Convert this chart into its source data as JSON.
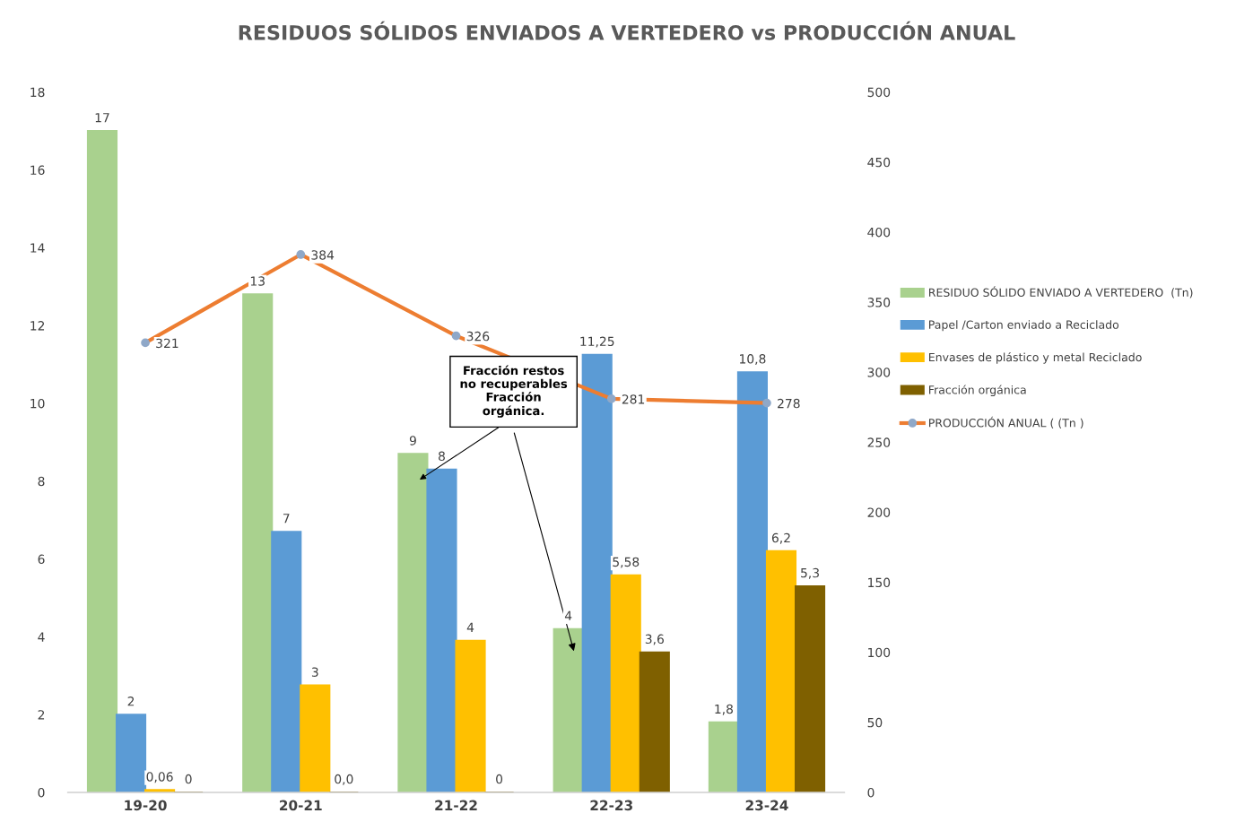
{
  "chart_data": {
    "type": "bar",
    "title": "RESIDUOS SÓLIDOS ENVIADOS A VERTEDERO vs PRODUCCIÓN ANUAL",
    "categories": [
      "19-20",
      "20-21",
      "21-22",
      "22-23",
      "23-24"
    ],
    "series": [
      {
        "name": "RESIDUO SÓLIDO ENVIADO A VERTEDERO  (Tn)",
        "color": "#a9d18e",
        "values": [
          17,
          12.8,
          8.7,
          4.2,
          1.8
        ],
        "value_labels": [
          "17",
          "13",
          "9",
          "4",
          "1,8"
        ]
      },
      {
        "name": "Papel /Carton enviado a Reciclado",
        "color": "#5b9bd5",
        "values": [
          2,
          6.7,
          8.3,
          11.25,
          10.8
        ],
        "value_labels": [
          "2",
          "7",
          "8",
          "11,25",
          "10,8"
        ]
      },
      {
        "name": "Envases de plástico y metal Reciclado",
        "color": "#ffc000",
        "values": [
          0.06,
          2.75,
          3.9,
          5.58,
          6.2
        ],
        "value_labels": [
          "0,06",
          "3",
          "4",
          "5,58",
          "6,2"
        ]
      },
      {
        "name": "Fracción orgánica",
        "color": "#7f6000",
        "values": [
          0,
          0,
          0,
          3.6,
          5.3
        ],
        "value_labels": [
          "0",
          "0,0",
          "0",
          "3,6",
          "5,3"
        ]
      },
      {
        "name": "PRODUCCIÓN ANUAL ( (Tn )",
        "type": "line",
        "axis": "y2",
        "color": "#ed7d31",
        "marker": "circle",
        "values": [
          321,
          384,
          326,
          281,
          278
        ],
        "value_labels": [
          "321",
          "384",
          "326",
          "281",
          "278"
        ]
      }
    ],
    "ylim": [
      0,
      18
    ],
    "yticks": [
      0,
      2,
      4,
      6,
      8,
      10,
      12,
      14,
      16,
      18
    ],
    "y2lim": [
      0,
      500
    ],
    "y2ticks": [
      0,
      50,
      100,
      150,
      200,
      250,
      300,
      350,
      400,
      450,
      500
    ],
    "annotations": [
      "Fracción restos\nno recuperables\nFracción\norgánica."
    ],
    "legend": "right",
    "grid": false
  }
}
